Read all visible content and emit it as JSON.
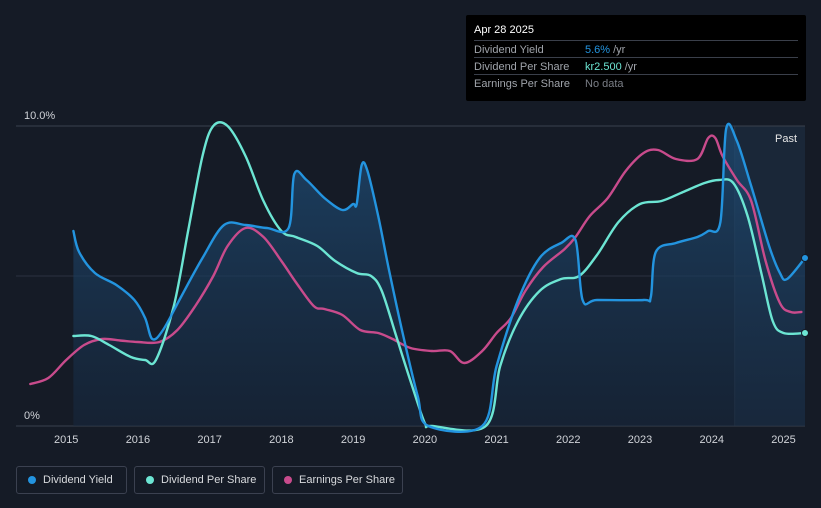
{
  "tooltip": {
    "date": "Apr 28 2025",
    "rows": [
      {
        "label": "Dividend Yield",
        "value": "5.6%",
        "suffix": "/yr",
        "color": "#2394df"
      },
      {
        "label": "Dividend Per Share",
        "value": "kr2.500",
        "suffix": "/yr",
        "color": "#6ce5d3"
      },
      {
        "label": "Earnings Per Share",
        "value": "No data",
        "suffix": "",
        "color": "#7b7f87"
      }
    ]
  },
  "legend": [
    {
      "label": "Dividend Yield",
      "color": "#2394df"
    },
    {
      "label": "Dividend Per Share",
      "color": "#6ce5d3"
    },
    {
      "label": "Earnings Per Share",
      "color": "#c84b8c"
    }
  ],
  "chart_data": {
    "type": "line",
    "past_label": "Past",
    "ylim": [
      0,
      10
    ],
    "y_tick_labels": [
      {
        "value": 10,
        "label": "10.0%"
      },
      {
        "value": 0,
        "label": "0%"
      }
    ],
    "xlim": [
      2014.3,
      2025.3
    ],
    "x_ticks": [
      "2015",
      "2016",
      "2017",
      "2018",
      "2019",
      "2020",
      "2021",
      "2022",
      "2023",
      "2024",
      "2025"
    ],
    "forecast_start": 2024.32,
    "series": [
      {
        "name": "Dividend Yield",
        "color": "#2394df",
        "filled": true,
        "points": [
          [
            2015.1,
            6.5
          ],
          [
            2015.18,
            5.8
          ],
          [
            2015.4,
            5.1
          ],
          [
            2015.7,
            4.7
          ],
          [
            2015.95,
            4.2
          ],
          [
            2016.1,
            3.6
          ],
          [
            2016.2,
            2.9
          ],
          [
            2016.35,
            3.2
          ],
          [
            2016.6,
            4.3
          ],
          [
            2016.9,
            5.6
          ],
          [
            2017.2,
            6.7
          ],
          [
            2017.5,
            6.7
          ],
          [
            2017.8,
            6.6
          ],
          [
            2018.1,
            6.6
          ],
          [
            2018.18,
            8.4
          ],
          [
            2018.35,
            8.2
          ],
          [
            2018.6,
            7.6
          ],
          [
            2018.85,
            7.2
          ],
          [
            2019.0,
            7.4
          ],
          [
            2019.05,
            7.4
          ],
          [
            2019.12,
            8.7
          ],
          [
            2019.2,
            8.5
          ],
          [
            2019.35,
            7.0
          ],
          [
            2019.5,
            5.2
          ],
          [
            2019.7,
            3.0
          ],
          [
            2019.9,
            1.0
          ],
          [
            2020.05,
            0.0
          ],
          [
            2020.8,
            0.0
          ],
          [
            2021.0,
            2.0
          ],
          [
            2021.3,
            4.2
          ],
          [
            2021.6,
            5.6
          ],
          [
            2021.9,
            6.1
          ],
          [
            2022.1,
            6.2
          ],
          [
            2022.2,
            4.2
          ],
          [
            2022.4,
            4.2
          ],
          [
            2023.05,
            4.2
          ],
          [
            2023.15,
            4.3
          ],
          [
            2023.22,
            5.8
          ],
          [
            2023.5,
            6.1
          ],
          [
            2023.8,
            6.3
          ],
          [
            2023.95,
            6.5
          ],
          [
            2024.12,
            6.8
          ],
          [
            2024.2,
            9.9
          ],
          [
            2024.35,
            9.5
          ],
          [
            2024.55,
            8.0
          ],
          [
            2024.8,
            6.0
          ],
          [
            2024.95,
            5.1
          ],
          [
            2025.05,
            4.9
          ],
          [
            2025.3,
            5.6
          ]
        ]
      },
      {
        "name": "Dividend Per Share",
        "color": "#6ce5d3",
        "filled": false,
        "points": [
          [
            2015.1,
            3.0
          ],
          [
            2015.35,
            3.0
          ],
          [
            2015.6,
            2.7
          ],
          [
            2015.9,
            2.3
          ],
          [
            2016.1,
            2.2
          ],
          [
            2016.25,
            2.2
          ],
          [
            2016.5,
            4.0
          ],
          [
            2016.7,
            6.5
          ],
          [
            2016.9,
            9.0
          ],
          [
            2017.05,
            10.0
          ],
          [
            2017.25,
            10.0
          ],
          [
            2017.5,
            9.0
          ],
          [
            2017.75,
            7.5
          ],
          [
            2018.0,
            6.5
          ],
          [
            2018.2,
            6.3
          ],
          [
            2018.5,
            6.0
          ],
          [
            2018.75,
            5.5
          ],
          [
            2019.05,
            5.1
          ],
          [
            2019.25,
            5.0
          ],
          [
            2019.4,
            4.5
          ],
          [
            2019.6,
            3.0
          ],
          [
            2019.8,
            1.5
          ],
          [
            2020.0,
            0.1
          ],
          [
            2020.1,
            0.0
          ],
          [
            2020.85,
            0.0
          ],
          [
            2021.05,
            2.0
          ],
          [
            2021.3,
            3.5
          ],
          [
            2021.6,
            4.5
          ],
          [
            2021.9,
            4.9
          ],
          [
            2022.15,
            5.0
          ],
          [
            2022.4,
            5.7
          ],
          [
            2022.7,
            6.8
          ],
          [
            2023.0,
            7.4
          ],
          [
            2023.3,
            7.5
          ],
          [
            2023.6,
            7.8
          ],
          [
            2023.9,
            8.1
          ],
          [
            2024.1,
            8.2
          ],
          [
            2024.3,
            8.1
          ],
          [
            2024.5,
            7.0
          ],
          [
            2024.7,
            5.0
          ],
          [
            2024.85,
            3.5
          ],
          [
            2025.0,
            3.1
          ],
          [
            2025.3,
            3.1
          ]
        ]
      },
      {
        "name": "Earnings Per Share",
        "color": "#c84b8c",
        "filled": false,
        "points": [
          [
            2014.5,
            1.4
          ],
          [
            2014.75,
            1.6
          ],
          [
            2015.0,
            2.2
          ],
          [
            2015.25,
            2.7
          ],
          [
            2015.5,
            2.9
          ],
          [
            2015.75,
            2.85
          ],
          [
            2016.0,
            2.8
          ],
          [
            2016.3,
            2.8
          ],
          [
            2016.55,
            3.2
          ],
          [
            2016.8,
            4.0
          ],
          [
            2017.05,
            5.0
          ],
          [
            2017.25,
            6.0
          ],
          [
            2017.5,
            6.6
          ],
          [
            2017.75,
            6.3
          ],
          [
            2018.0,
            5.5
          ],
          [
            2018.2,
            4.8
          ],
          [
            2018.45,
            4.0
          ],
          [
            2018.6,
            3.9
          ],
          [
            2018.85,
            3.7
          ],
          [
            2019.1,
            3.2
          ],
          [
            2019.35,
            3.1
          ],
          [
            2019.55,
            2.9
          ],
          [
            2019.8,
            2.6
          ],
          [
            2020.1,
            2.5
          ],
          [
            2020.35,
            2.5
          ],
          [
            2020.55,
            2.1
          ],
          [
            2020.8,
            2.5
          ],
          [
            2021.0,
            3.1
          ],
          [
            2021.2,
            3.6
          ],
          [
            2021.4,
            4.5
          ],
          [
            2021.65,
            5.3
          ],
          [
            2021.95,
            5.9
          ],
          [
            2022.1,
            6.3
          ],
          [
            2022.3,
            7.0
          ],
          [
            2022.55,
            7.6
          ],
          [
            2022.8,
            8.5
          ],
          [
            2023.05,
            9.1
          ],
          [
            2023.25,
            9.2
          ],
          [
            2023.5,
            8.9
          ],
          [
            2023.8,
            8.9
          ],
          [
            2023.95,
            9.6
          ],
          [
            2024.05,
            9.6
          ],
          [
            2024.15,
            9.0
          ],
          [
            2024.35,
            8.2
          ],
          [
            2024.55,
            7.5
          ],
          [
            2024.75,
            5.5
          ],
          [
            2024.95,
            4.1
          ],
          [
            2025.1,
            3.8
          ],
          [
            2025.25,
            3.8
          ]
        ]
      }
    ]
  }
}
